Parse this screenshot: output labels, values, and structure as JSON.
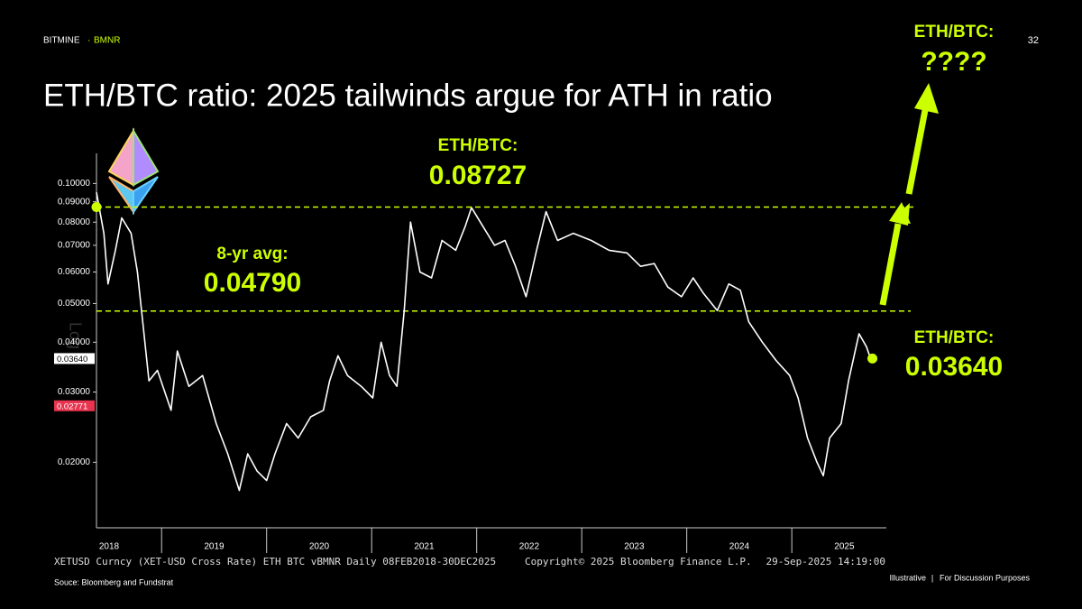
{
  "header": {
    "brand": "BITMINE",
    "brand_separator": "·",
    "ticker": "BMNR",
    "page_number": "32"
  },
  "chart_data": {
    "type": "line",
    "title": "ETH/BTC ratio: 2025 tailwinds argue for ATH in ratio",
    "log_scale": true,
    "scale_label": "Log",
    "color": "#ffffff",
    "accent_color": "#ccff00",
    "x": [
      2018.38,
      2018.45,
      2018.49,
      2018.56,
      2018.62,
      2018.71,
      2018.77,
      2018.82,
      2018.88,
      2018.96,
      2019.09,
      2019.15,
      2019.26,
      2019.39,
      2019.52,
      2019.63,
      2019.74,
      2019.82,
      2019.91,
      2020.0,
      2020.08,
      2020.19,
      2020.3,
      2020.42,
      2020.54,
      2020.6,
      2020.68,
      2020.77,
      2020.9,
      2021.01,
      2021.09,
      2021.17,
      2021.24,
      2021.31,
      2021.37,
      2021.46,
      2021.57,
      2021.67,
      2021.8,
      2021.89,
      2021.95,
      2022.06,
      2022.17,
      2022.27,
      2022.37,
      2022.47,
      2022.57,
      2022.66,
      2022.77,
      2022.92,
      2023.09,
      2023.26,
      2023.43,
      2023.56,
      2023.69,
      2023.82,
      2023.95,
      2024.06,
      2024.16,
      2024.29,
      2024.4,
      2024.51,
      2024.59,
      2024.72,
      2024.85,
      2024.98,
      2025.06,
      2025.15,
      2025.24,
      2025.3,
      2025.36,
      2025.47,
      2025.54,
      2025.64,
      2025.71,
      2025.75
    ],
    "values": [
      0.095,
      0.075,
      0.056,
      0.068,
      0.082,
      0.075,
      0.06,
      0.045,
      0.032,
      0.034,
      0.027,
      0.038,
      0.031,
      0.033,
      0.025,
      0.021,
      0.017,
      0.021,
      0.019,
      0.018,
      0.021,
      0.025,
      0.023,
      0.026,
      0.027,
      0.032,
      0.037,
      0.033,
      0.031,
      0.029,
      0.04,
      0.033,
      0.031,
      0.048,
      0.08,
      0.06,
      0.058,
      0.072,
      0.068,
      0.078,
      0.087,
      0.078,
      0.07,
      0.072,
      0.062,
      0.052,
      0.068,
      0.085,
      0.072,
      0.075,
      0.072,
      0.068,
      0.067,
      0.062,
      0.063,
      0.055,
      0.052,
      0.058,
      0.053,
      0.048,
      0.056,
      0.054,
      0.045,
      0.04,
      0.036,
      0.033,
      0.029,
      0.023,
      0.02,
      0.0185,
      0.023,
      0.025,
      0.032,
      0.042,
      0.039,
      0.0364
    ],
    "xlim": [
      2018.38,
      2025.9
    ],
    "xticks": [
      2018,
      2019,
      2020,
      2021,
      2022,
      2023,
      2024,
      2025
    ],
    "ylim": [
      0.0137,
      0.119
    ],
    "yticks": [
      {
        "value": 0.02,
        "label": "0.02000"
      },
      {
        "value": 0.03,
        "label": "0.03000"
      },
      {
        "value": 0.04,
        "label": "0.04000"
      },
      {
        "value": 0.05,
        "label": "0.05000"
      },
      {
        "value": 0.06,
        "label": "0.06000"
      },
      {
        "value": 0.07,
        "label": "0.07000"
      },
      {
        "value": 0.08,
        "label": "0.08000"
      },
      {
        "value": 0.09,
        "label": "0.09000"
      },
      {
        "value": 0.1,
        "label": "0.10000"
      }
    ],
    "price_tags": [
      {
        "value": 0.0364,
        "label": "0.03640",
        "color": "#ffffff"
      },
      {
        "value": 0.02771,
        "label": "0.02771",
        "color": "#e8344e"
      }
    ],
    "annotations": {
      "peak": {
        "label": "ETH/BTC:",
        "value": 0.08727,
        "value_label": "0.08727"
      },
      "average": {
        "label": "8-yr avg:",
        "value": 0.0479,
        "value_label": "0.04790"
      },
      "current": {
        "label": "ETH/BTC:",
        "value": 0.0364,
        "value_label": "0.03640"
      },
      "target": {
        "label": "ETH/BTC:",
        "value_label": "????"
      }
    },
    "source_line": {
      "description": "XETUSD Curncy (XET-USD Cross Rate) ETH BTC vBMNR  Daily 08FEB2018-30DEC2025",
      "copyright": "Copyright© 2025 Bloomberg Finance L.P.",
      "timestamp": "29-Sep-2025 14:19:00"
    }
  },
  "footer": {
    "source": "Souce: Bloomberg and Fundstrat",
    "disclaimer_left": "Illustrative",
    "disclaimer_separator": "|",
    "disclaimer_right": "For Discussion Purposes"
  }
}
